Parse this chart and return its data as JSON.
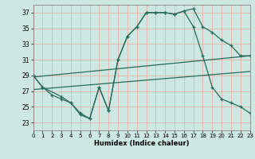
{
  "xlabel": "Humidex (Indice chaleur)",
  "xlim": [
    0,
    23
  ],
  "ylim": [
    22,
    38
  ],
  "yticks": [
    23,
    25,
    27,
    29,
    31,
    33,
    35,
    37
  ],
  "xticks": [
    0,
    1,
    2,
    3,
    4,
    5,
    6,
    7,
    8,
    9,
    10,
    11,
    12,
    13,
    14,
    15,
    16,
    17,
    18,
    19,
    20,
    21,
    22,
    23
  ],
  "bg_color": "#cce8e0",
  "grid_color": "#e8b0b0",
  "line_color": "#2a6a5a",
  "line1_x": [
    0,
    1,
    2,
    3,
    4,
    5,
    6,
    7,
    8,
    9,
    10,
    11,
    12,
    13,
    14,
    15,
    16,
    17,
    18,
    19,
    20,
    21,
    22,
    23
  ],
  "line1_y": [
    29,
    27.5,
    26.5,
    26,
    25.5,
    24,
    23.5,
    27.5,
    24.5,
    31,
    34,
    35.2,
    37,
    37,
    37,
    36.8,
    37.2,
    37.5,
    35.2,
    34.5,
    33.5,
    32.8,
    31.5,
    31.5
  ],
  "line2_x": [
    0,
    1,
    3,
    4,
    5,
    6,
    7,
    8,
    9,
    10,
    11,
    12,
    13,
    14,
    15,
    16,
    17,
    18,
    19,
    20,
    21,
    22,
    23
  ],
  "line2_y": [
    29,
    27.5,
    26.3,
    25.5,
    24.2,
    23.5,
    27.5,
    24.5,
    31,
    34,
    35.2,
    37,
    37,
    37,
    36.8,
    37.2,
    35.2,
    31.5,
    27.5,
    26,
    25.5,
    25,
    24.2
  ],
  "line3_x": [
    0,
    23
  ],
  "line3_y": [
    28.8,
    31.5
  ],
  "line4_x": [
    0,
    23
  ],
  "line4_y": [
    27.2,
    29.5
  ]
}
